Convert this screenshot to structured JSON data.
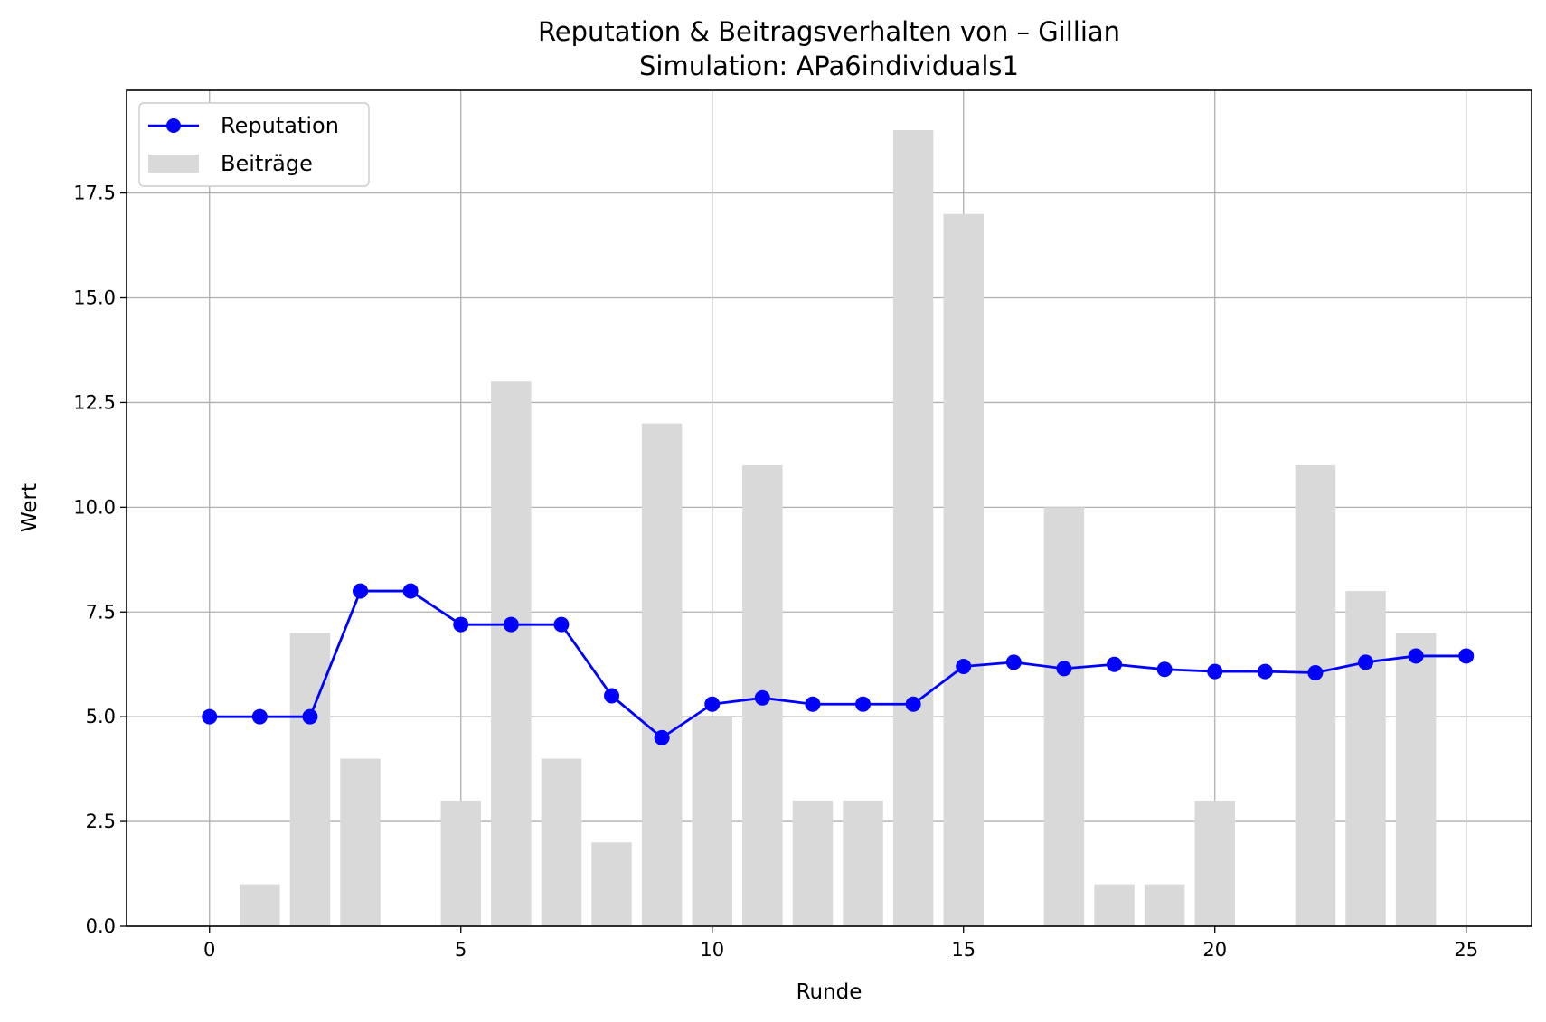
{
  "chart_data": {
    "type": "bar+line",
    "title": "Reputation & Beitragsverhalten von – Gillian",
    "subtitle": "Simulation: APa6individuals1",
    "xlabel": "Runde",
    "ylabel": "Wert",
    "xlim": [
      -1.65,
      26.3
    ],
    "ylim": [
      0,
      19.95
    ],
    "xticks": [
      0,
      5,
      10,
      15,
      20,
      25
    ],
    "yticks": [
      0.0,
      2.5,
      5.0,
      7.5,
      10.0,
      12.5,
      15.0,
      17.5
    ],
    "xtick_labels": [
      "0",
      "5",
      "10",
      "15",
      "20",
      "25"
    ],
    "ytick_labels": [
      "0.0",
      "2.5",
      "5.0",
      "7.5",
      "10.0",
      "12.5",
      "15.0",
      "17.5"
    ],
    "grid": true,
    "legend_position": "upper-left",
    "series": [
      {
        "name": "Reputation",
        "kind": "line",
        "color": "#0000ff",
        "marker": "circle",
        "x": [
          0,
          1,
          2,
          3,
          4,
          5,
          6,
          7,
          8,
          9,
          10,
          11,
          12,
          13,
          14,
          15,
          16,
          17,
          18,
          19,
          20,
          21,
          22,
          23,
          24,
          25
        ],
        "values": [
          5.0,
          5.0,
          5.0,
          8.0,
          8.0,
          7.2,
          7.2,
          7.2,
          5.5,
          4.5,
          5.3,
          5.45,
          5.3,
          5.3,
          5.3,
          6.2,
          6.3,
          6.15,
          6.25,
          6.13,
          6.08,
          6.08,
          6.05,
          6.3,
          6.45,
          6.45
        ]
      },
      {
        "name": "Beiträge",
        "kind": "bar",
        "color": "#d9d9d9",
        "x": [
          0,
          1,
          2,
          3,
          4,
          5,
          6,
          7,
          8,
          9,
          10,
          11,
          12,
          13,
          14,
          15,
          16,
          17,
          18,
          19,
          20,
          21,
          22,
          23,
          24,
          25
        ],
        "values": [
          0,
          1,
          7,
          4,
          0,
          3,
          13,
          4,
          2,
          12,
          5,
          11,
          3,
          3,
          19,
          17,
          0,
          10,
          1,
          1,
          3,
          0,
          11,
          8,
          7,
          0
        ]
      }
    ]
  }
}
